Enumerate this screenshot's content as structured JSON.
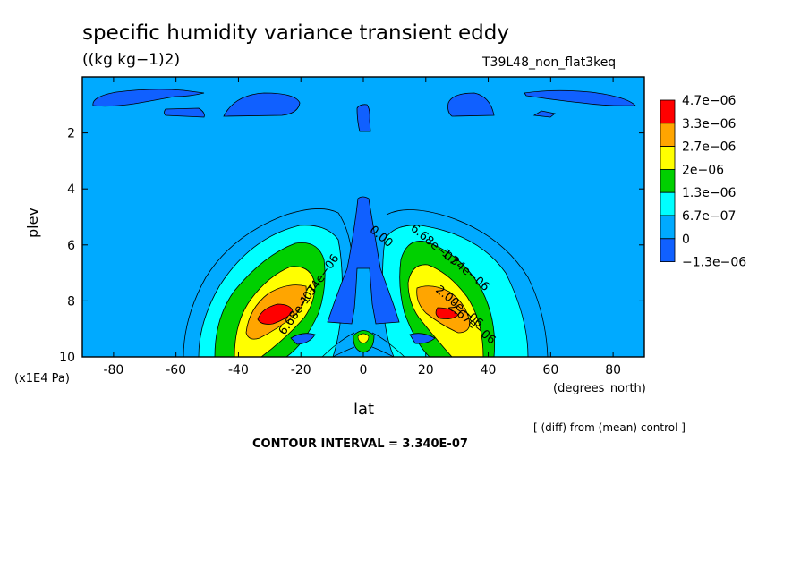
{
  "chart_data": {
    "type": "heatmap",
    "subtype": "filled-contour",
    "title": "specific humidity variance transient eddy",
    "units": "((kg kg−1)2)",
    "run_label": "T39L48_non_flat3keq",
    "xlabel": "lat",
    "x_units": "(degrees_north)",
    "ylabel": "plev",
    "y_units": "(x1E4 Pa)",
    "xlim": [
      -90,
      90
    ],
    "ylim": [
      10,
      0
    ],
    "y_axis_inverted": true,
    "x_ticks": [
      -80,
      -60,
      -40,
      -20,
      0,
      20,
      40,
      60,
      80
    ],
    "y_ticks": [
      2,
      4,
      6,
      8,
      10
    ],
    "contour_interval_text": "CONTOUR INTERVAL = 3.340E-07",
    "diff_note": "[ (diff) from (mean) control ]",
    "colorbar": {
      "labels": [
        "4.7e−06",
        "3.3e−06",
        "2.7e−06",
        "2e−06",
        "1.3e−06",
        "6.7e−07",
        "0",
        "−1.3e−06"
      ],
      "colors": [
        "#ff0000",
        "#ffa500",
        "#ffff00",
        "#00d000",
        "#00ffff",
        "#00aaff",
        "#1060ff"
      ]
    },
    "contour_labels": [
      {
        "text": "0.00",
        "lat": 5,
        "plev": 5.8
      },
      {
        "text": "6.68e−07",
        "lat": 22,
        "plev": 6.1
      },
      {
        "text": "1.34e−06",
        "lat": 32,
        "plev": 7.0
      },
      {
        "text": "2.00e−06",
        "lat": 30,
        "plev": 8.3
      },
      {
        "text": "2.67e−06",
        "lat": 34,
        "plev": 8.9
      },
      {
        "text": "1.34e−06",
        "lat": -13,
        "plev": 7.3
      },
      {
        "text": "6.68e−07",
        "lat": -20,
        "plev": 8.4
      }
    ],
    "features": [
      {
        "description": "maxima",
        "lat": -25,
        "plev": 8.4,
        "value": 4.7e-06
      },
      {
        "description": "maxima",
        "lat": 25,
        "plev": 8.4,
        "value": 3.5e-06
      }
    ]
  }
}
